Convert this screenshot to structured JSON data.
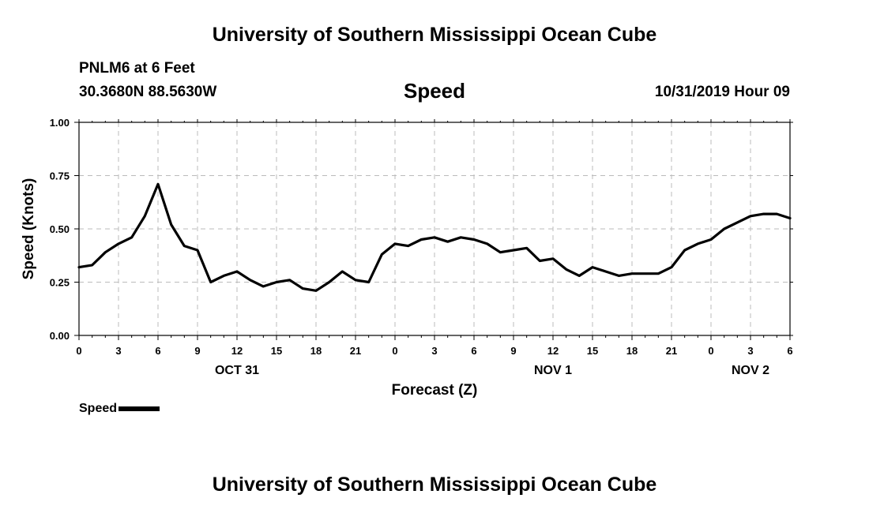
{
  "header": {
    "title": "University of Southern Mississippi Ocean Cube",
    "station": "PNLM6 at 6 Feet",
    "coords": "30.3680N 88.5630W",
    "chart_title": "Speed",
    "timestamp": "10/31/2019 Hour 09"
  },
  "footer": {
    "title": "University of Southern Mississippi Ocean Cube"
  },
  "legend": {
    "label": "Speed",
    "color": "#000000"
  },
  "colors": {
    "line": "#000000",
    "grid": "#bbbbbb",
    "axis": "#000000"
  },
  "chart_data": {
    "type": "line",
    "title": "Speed",
    "xlabel": "Forecast (Z)",
    "ylabel": "Speed (Knots)",
    "xlim": [
      0,
      54
    ],
    "ylim": [
      0,
      1.0
    ],
    "grid": true,
    "legend": "bottom-left",
    "yticks": [
      {
        "value": 0.0,
        "label": "0.00"
      },
      {
        "value": 0.25,
        "label": "0.25"
      },
      {
        "value": 0.5,
        "label": "0.50"
      },
      {
        "value": 0.75,
        "label": "0.75"
      },
      {
        "value": 1.0,
        "label": "1.00"
      }
    ],
    "xticks": [
      {
        "value": 0,
        "label": "0"
      },
      {
        "value": 3,
        "label": "3"
      },
      {
        "value": 6,
        "label": "6"
      },
      {
        "value": 9,
        "label": "9"
      },
      {
        "value": 12,
        "label": "12"
      },
      {
        "value": 15,
        "label": "15"
      },
      {
        "value": 18,
        "label": "18"
      },
      {
        "value": 21,
        "label": "21"
      },
      {
        "value": 24,
        "label": "0"
      },
      {
        "value": 27,
        "label": "3"
      },
      {
        "value": 30,
        "label": "6"
      },
      {
        "value": 33,
        "label": "9"
      },
      {
        "value": 36,
        "label": "12"
      },
      {
        "value": 39,
        "label": "15"
      },
      {
        "value": 42,
        "label": "18"
      },
      {
        "value": 45,
        "label": "21"
      },
      {
        "value": 48,
        "label": "0"
      },
      {
        "value": 51,
        "label": "3"
      },
      {
        "value": 54,
        "label": "6"
      }
    ],
    "day_labels": [
      {
        "value": 12,
        "label": "OCT 31"
      },
      {
        "value": 36,
        "label": "NOV 1"
      },
      {
        "value": 51,
        "label": "NOV 2"
      }
    ],
    "series": [
      {
        "name": "Speed",
        "x": [
          0,
          1,
          2,
          3,
          4,
          5,
          6,
          7,
          8,
          9,
          10,
          11,
          12,
          13,
          14,
          15,
          16,
          17,
          18,
          19,
          20,
          21,
          22,
          23,
          24,
          25,
          26,
          27,
          28,
          29,
          30,
          31,
          32,
          33,
          34,
          35,
          36,
          37,
          38,
          39,
          40,
          41,
          42,
          43,
          44,
          45,
          46,
          47,
          48,
          49,
          50,
          51,
          52,
          53,
          54
        ],
        "values": [
          0.32,
          0.33,
          0.39,
          0.43,
          0.46,
          0.56,
          0.71,
          0.52,
          0.42,
          0.4,
          0.25,
          0.28,
          0.3,
          0.26,
          0.23,
          0.25,
          0.26,
          0.22,
          0.21,
          0.25,
          0.3,
          0.26,
          0.25,
          0.38,
          0.43,
          0.42,
          0.45,
          0.46,
          0.44,
          0.46,
          0.45,
          0.43,
          0.39,
          0.4,
          0.41,
          0.35,
          0.36,
          0.31,
          0.28,
          0.32,
          0.3,
          0.28,
          0.29,
          0.29,
          0.29,
          0.32,
          0.4,
          0.43,
          0.45,
          0.5,
          0.53,
          0.56,
          0.57,
          0.57,
          0.55
        ]
      }
    ]
  }
}
